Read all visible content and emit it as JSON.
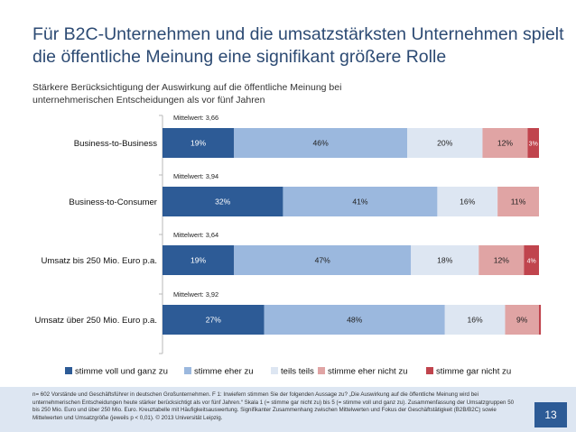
{
  "title": "Für B2C-Unternehmen und die umsatzstärksten Unternehmen spielt die öffentliche Meinung eine signifikant größere Rolle",
  "subtitle": "Stärkere Berücksichtigung der Auswirkung auf die  öffentliche Meinung bei unternehmerischen Entscheidungen als vor fünf Jahren",
  "footnote": "n= 602 Vorstände und Geschäftsführer in deutschen Großunternehmen. F 1: Inwiefern stimmen Sie der folgenden Aussage zu? „Die Auswirkung auf die öffentliche Meinung wird bei unternehmerischen Entscheidungen heute stärker berücksichtigt als vor fünf Jahren.“ Skala 1 (= stimme gar nicht zu) bis 5 (= stimme voll und ganz zu). Zusammenfassung der Umsatzgruppen 50 bis 250 Mio. Euro und über 250 Mio. Euro. Kreuztabelle mit Häufigkeitsauswertung. Signifikanter Zusammenhang zwischen Mittelwerten und Fokus der Geschäftstätigkeit (B2B/B2C) sowie Mittelwerten und Umsatzgröße (jeweils p < 0,01). © 2013 Universität Leipzig.",
  "page_number": "13",
  "colors": {
    "title": "#2c4a73",
    "stimme_voll_und_ganz_zu": "#2d5b96",
    "stimme_eher_zu": "#9bb8de",
    "teils_teils": "#dde6f2",
    "stimme_eher_nicht_zu": "#e0a4a4",
    "stimme_gar_nicht_zu": "#c0444d"
  },
  "chart_data": {
    "type": "stacked-bar-horizontal",
    "unit": "%",
    "categories": [
      "Business-to-Business",
      "Business-to-Consumer",
      "Umsatz bis 250 Mio. Euro p.a.",
      "Umsatz über 250 Mio. Euro p.a."
    ],
    "mean_labels": [
      "Mittelwert: 3,66",
      "Mittelwert: 3,94",
      "Mittelwert: 3,64",
      "Mittelwert: 3,92"
    ],
    "series": [
      {
        "name": "stimme voll und ganz zu",
        "color": "#2d5b96",
        "label_color": "#ffffff",
        "values": [
          19,
          32,
          19,
          27
        ]
      },
      {
        "name": "stimme eher zu",
        "color": "#9bb8de",
        "label_color": "#222222",
        "values": [
          46,
          41,
          47,
          48
        ]
      },
      {
        "name": "teils teils",
        "color": "#dde6f2",
        "label_color": "#222222",
        "values": [
          20,
          16,
          18,
          16
        ]
      },
      {
        "name": "stimme eher nicht zu",
        "color": "#e0a4a4",
        "label_color": "#222222",
        "values": [
          12,
          11,
          12,
          9
        ]
      },
      {
        "name": "stimme gar nicht zu",
        "color": "#c0444d",
        "label_color": "#ffffff",
        "values": [
          3,
          0,
          4,
          0.5
        ]
      }
    ],
    "segment_labels": [
      [
        "19%",
        "46%",
        "20%",
        "12%",
        "3%"
      ],
      [
        "32%",
        "41%",
        "16%",
        "11%",
        ""
      ],
      [
        "19%",
        "47%",
        "18%",
        "12%",
        "4%"
      ],
      [
        "27%",
        "48%",
        "16%",
        "9%",
        ""
      ]
    ],
    "legend_position": "bottom"
  }
}
